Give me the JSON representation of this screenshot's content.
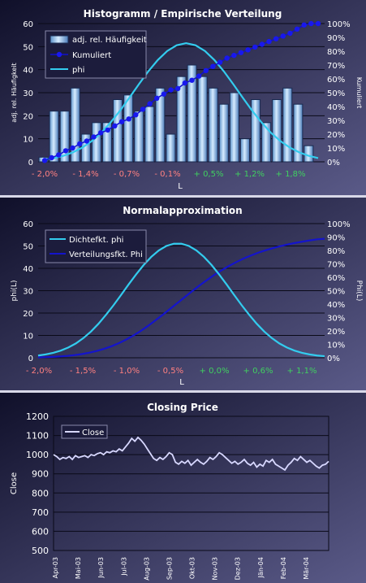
{
  "chart_data": [
    {
      "type": "bar",
      "title": "Histogramm / Empirische Verteilung",
      "xlabel": "L",
      "ylabel": "adj. rel. Häufigkeit",
      "y2label": "Kumuliert",
      "ylim": [
        0,
        60
      ],
      "y2lim": [
        0,
        100
      ],
      "yticks": [
        "0",
        "10",
        "20",
        "30",
        "40",
        "50",
        "60"
      ],
      "y2ticks": [
        "0%",
        "10%",
        "20%",
        "30%",
        "40%",
        "50%",
        "60%",
        "70%",
        "80%",
        "90%",
        "100%"
      ],
      "xticks": [
        {
          "label": "- 2,0%",
          "color": "#ff8080"
        },
        {
          "label": "- 1,4%",
          "color": "#ff8080"
        },
        {
          "label": "- 0,7%",
          "color": "#ff8080"
        },
        {
          "label": "- 0,1%",
          "color": "#ff8080"
        },
        {
          "label": "+ 0,5%",
          "color": "#40d060"
        },
        {
          "label": "+ 1,2%",
          "color": "#40d060"
        },
        {
          "label": "+ 1,8%",
          "color": "#40d060"
        }
      ],
      "legend": [
        "adj. rel. Häufigkeit",
        "Kumuliert",
        "phi"
      ],
      "legend_position": "top-left",
      "series": [
        {
          "name": "adj. rel. Häufigkeit",
          "type": "bar",
          "values": [
            2,
            22,
            22,
            32,
            12,
            17,
            17,
            27,
            29,
            22,
            24,
            32,
            12,
            37,
            42,
            37,
            32,
            25,
            30,
            10,
            27,
            17,
            27,
            32,
            25,
            7,
            0
          ]
        },
        {
          "name": "Kumuliert",
          "type": "line-marker",
          "axis": "y2",
          "values": [
            1,
            3,
            5,
            8,
            10,
            13,
            15,
            18,
            21,
            23,
            26,
            29,
            31,
            34,
            38,
            42,
            46,
            49,
            52,
            53,
            57,
            59,
            62,
            66,
            69,
            72,
            75,
            77,
            79,
            81,
            83,
            85,
            87,
            89,
            91,
            93,
            96,
            99,
            100,
            100
          ]
        },
        {
          "name": "phi",
          "type": "line",
          "values": [
            1.0,
            1.6,
            2.6,
            4.1,
            6.2,
            9.0,
            12.6,
            17.1,
            22.2,
            27.9,
            33.7,
            39.3,
            44.2,
            48.1,
            50.6,
            51.5,
            50.6,
            48.1,
            44.2,
            39.3,
            33.7,
            27.9,
            22.2,
            17.1,
            12.6,
            9.0,
            6.2,
            4.1,
            2.6,
            1.6
          ]
        }
      ]
    },
    {
      "type": "line",
      "title": "Normalapproximation",
      "xlabel": "L",
      "ylabel": "phi(L)",
      "y2label": "Phi(L)",
      "ylim": [
        0,
        60
      ],
      "y2lim": [
        0,
        100
      ],
      "yticks": [
        "0",
        "10",
        "20",
        "30",
        "40",
        "50",
        "60"
      ],
      "y2ticks": [
        "0%",
        "10%",
        "20%",
        "30%",
        "40%",
        "50%",
        "60%",
        "70%",
        "80%",
        "90%",
        "100%"
      ],
      "xticks": [
        {
          "label": "- 2,0%",
          "color": "#ff8080"
        },
        {
          "label": "- 1,5%",
          "color": "#ff8080"
        },
        {
          "label": "- 1,0%",
          "color": "#ff8080"
        },
        {
          "label": "- 0,5%",
          "color": "#ff8080"
        },
        {
          "label": "+ 0,0%",
          "color": "#40d060"
        },
        {
          "label": "+ 0,6%",
          "color": "#40d060"
        },
        {
          "label": "+ 1,1%",
          "color": "#40d060"
        }
      ],
      "legend": [
        "Dichtefkt. phi",
        "Verteilungsfkt. Phi"
      ],
      "legend_position": "top-left",
      "series": [
        {
          "name": "Dichtefkt. phi",
          "values": [
            1.0,
            1.5,
            2.2,
            3.2,
            4.6,
            6.4,
            8.8,
            11.7,
            15.2,
            19.2,
            23.5,
            28.1,
            32.8,
            37.3,
            41.5,
            45.1,
            48.0,
            50.0,
            51.0,
            51.0,
            50.0,
            48.0,
            45.1,
            41.5,
            37.3,
            32.8,
            28.1,
            23.5,
            19.2,
            15.2,
            11.7,
            8.8,
            6.4,
            4.6,
            3.2,
            2.2,
            1.5,
            1.0,
            0.7
          ]
        },
        {
          "name": "Verteilungsfkt. Phi",
          "axis": "y2",
          "values": [
            0.3,
            0.5,
            0.7,
            1.0,
            1.4,
            2.0,
            2.8,
            3.8,
            5.1,
            6.7,
            8.6,
            10.9,
            13.6,
            16.7,
            20.1,
            23.9,
            28.0,
            32.2,
            36.6,
            41.0,
            45.4,
            49.8,
            54.0,
            58.0,
            61.8,
            65.3,
            68.5,
            71.4,
            74.0,
            76.3,
            78.4,
            80.2,
            81.8,
            83.2,
            84.5,
            85.6,
            86.6,
            87.5,
            88.3,
            88.7
          ]
        }
      ]
    },
    {
      "type": "line",
      "title": "Closing Price",
      "ylabel": "Close",
      "ylim": [
        500,
        1200
      ],
      "yticks": [
        "500",
        "600",
        "700",
        "800",
        "900",
        "1000",
        "1100",
        "1200"
      ],
      "xticks": [
        "Apr-03",
        "Mai-03",
        "Jun-03",
        "Jul-03",
        "Aug-03",
        "Sep-03",
        "Okt-03",
        "Nov-03",
        "Dez-03",
        "Jän-04",
        "Feb-04",
        "Mär-04"
      ],
      "legend": [
        "Close"
      ],
      "legend_position": "top-left",
      "series": [
        {
          "name": "Close",
          "values": [
            1000,
            990,
            975,
            985,
            980,
            990,
            975,
            995,
            985,
            990,
            995,
            985,
            1000,
            995,
            1005,
            1010,
            1000,
            1015,
            1010,
            1020,
            1015,
            1030,
            1020,
            1040,
            1060,
            1085,
            1070,
            1090,
            1075,
            1055,
            1030,
            1005,
            980,
            970,
            985,
            975,
            990,
            1010,
            1000,
            960,
            950,
            965,
            955,
            970,
            945,
            960,
            975,
            960,
            950,
            965,
            985,
            975,
            990,
            1010,
            1000,
            985,
            970,
            955,
            965,
            950,
            960,
            975,
            955,
            945,
            960,
            935,
            950,
            940,
            970,
            960,
            975,
            950,
            940,
            930,
            920,
            945,
            960,
            980,
            970,
            990,
            975,
            960,
            970,
            955,
            940,
            930,
            945,
            950,
            965
          ]
        }
      ]
    }
  ]
}
